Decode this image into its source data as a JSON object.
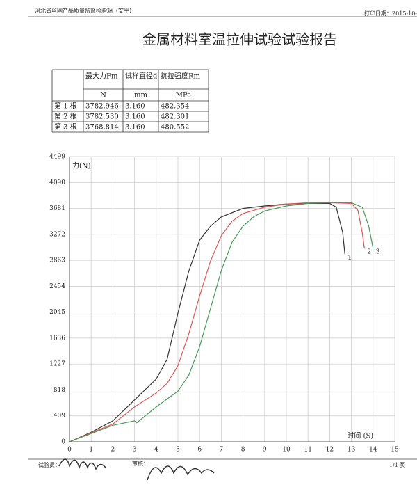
{
  "header": {
    "org": "河北省丝网产品质量监督检验站（安平）",
    "print_date": "打印日期：2015-10-",
    "title": "金属材料室温拉伸试验试验报告"
  },
  "table": {
    "columns": [
      "最大力Fm",
      "试样直径d",
      "抗拉强度Rm"
    ],
    "units": [
      "N",
      "mm",
      "MPa"
    ],
    "rows": [
      [
        "第 1 根",
        "3782.946",
        "3.160",
        "482.354"
      ],
      [
        "第 2 根",
        "3782.530",
        "3.160",
        "482.301"
      ],
      [
        "第 3 根",
        "3768.814",
        "3.160",
        "480.552"
      ]
    ]
  },
  "chart_data": {
    "type": "line",
    "y_label": "力(N)",
    "x_label": "时间 (S)",
    "xlim": [
      0,
      15
    ],
    "xticks": [
      0,
      1,
      2,
      3,
      4,
      5,
      6,
      7,
      8,
      9,
      10,
      11,
      12,
      13,
      14,
      15
    ],
    "ylim": [
      0,
      4499
    ],
    "yticks": [
      0,
      409,
      818,
      1227,
      1636,
      2045,
      2454,
      2863,
      3272,
      3681,
      4090,
      4499
    ],
    "grid": true,
    "series": [
      {
        "name": "1",
        "color": "#333333",
        "x": [
          0,
          1,
          2,
          3,
          4,
          4.5,
          5,
          5.5,
          6,
          6.5,
          7,
          8,
          9,
          10,
          11,
          12,
          12.3,
          12.6,
          12.7
        ],
        "values": [
          0,
          150,
          330,
          660,
          990,
          1300,
          2030,
          2690,
          3180,
          3400,
          3545,
          3680,
          3720,
          3750,
          3760,
          3760,
          3700,
          3300,
          2960
        ]
      },
      {
        "name": "2",
        "color": "#e05555",
        "x": [
          0,
          1,
          2,
          3,
          4,
          4.5,
          5,
          5.5,
          6,
          6.5,
          7,
          7.5,
          8,
          9,
          10,
          11,
          12,
          13,
          13.3,
          13.5,
          13.6
        ],
        "values": [
          0,
          140,
          280,
          550,
          770,
          920,
          1200,
          1700,
          2300,
          2850,
          3250,
          3480,
          3600,
          3700,
          3750,
          3770,
          3770,
          3760,
          3650,
          3300,
          3050
        ]
      },
      {
        "name": "3",
        "color": "#4a9a5a",
        "x": [
          0,
          1,
          2,
          3,
          3.1,
          4,
          5,
          5.5,
          6,
          6.5,
          7,
          7.5,
          8,
          8.5,
          9,
          10,
          11,
          12,
          13,
          13.5,
          13.8,
          14
        ],
        "values": [
          0,
          130,
          260,
          330,
          300,
          550,
          800,
          1050,
          1500,
          2100,
          2700,
          3150,
          3400,
          3550,
          3640,
          3720,
          3760,
          3770,
          3770,
          3700,
          3400,
          3050
        ]
      }
    ]
  },
  "footer": {
    "tester": "试验员：",
    "reviewer": "审核：",
    "page": "1/1 页"
  }
}
